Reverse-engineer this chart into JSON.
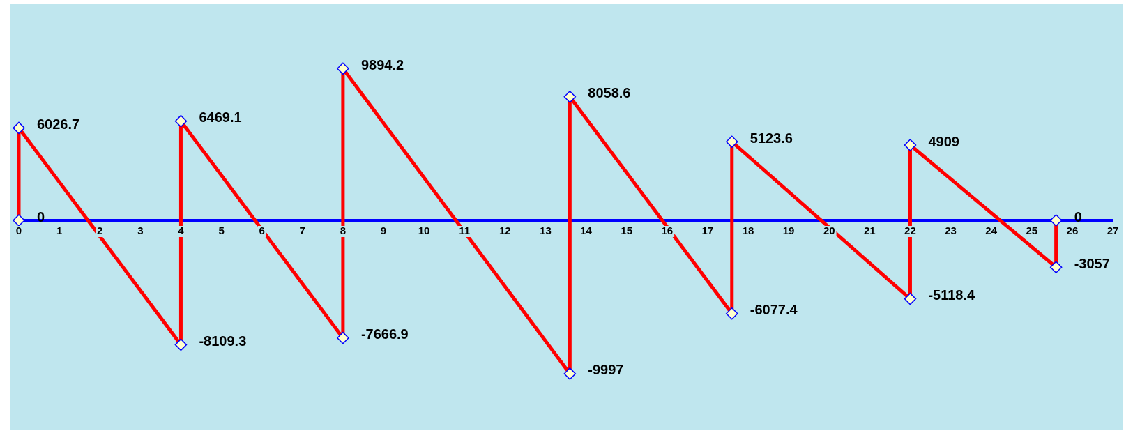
{
  "chart_data": {
    "type": "line",
    "x": [
      0,
      0,
      4,
      4,
      8,
      8,
      13.6,
      13.6,
      17.6,
      17.6,
      22,
      22,
      25.6,
      25.6
    ],
    "series": [
      {
        "color": "#ff0000",
        "values": [
          0,
          6026.7,
          -8109.3,
          6469.1,
          -7666.9,
          9894.2,
          -9997,
          8058.6,
          -6077.4,
          5123.6,
          -5118.4,
          4909,
          -3057,
          0
        ]
      }
    ],
    "xlim": [
      0,
      27
    ],
    "xticks": [
      0,
      1,
      2,
      3,
      4,
      5,
      6,
      7,
      8,
      9,
      10,
      11,
      12,
      13,
      14,
      15,
      16,
      17,
      18,
      19,
      20,
      21,
      22,
      23,
      24,
      25,
      26,
      27
    ],
    "tick_labels": "x",
    "data_labels": true,
    "marker": "diamond",
    "line_style": "solid",
    "grid": false,
    "legend": false
  }
}
